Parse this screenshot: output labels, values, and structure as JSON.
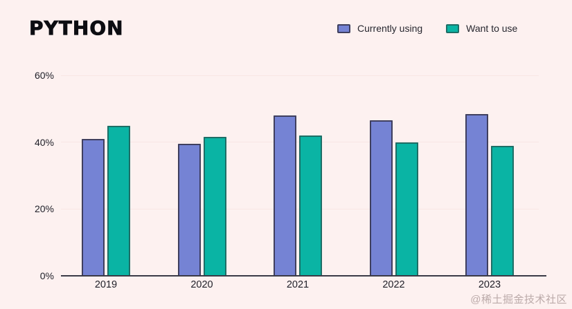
{
  "title": "PYTHON",
  "legend": [
    {
      "label": "Currently using",
      "color": "#7583d4",
      "border_color": "#3f3f5e"
    },
    {
      "label": "Want to use",
      "color": "#0ab4a4",
      "border_color": "#1d6e66"
    }
  ],
  "watermark": "@稀土掘金技术社区",
  "colors": {
    "background": "#fdf1f0",
    "axis_line": "#3a3a46",
    "gridline": "#f8e6e4",
    "text": "#1f1f28",
    "title_text": "#0d0d12",
    "series_currently_using": "#7583d4",
    "series_want_to_use": "#0ab4a4"
  },
  "chart_data": {
    "type": "bar",
    "title": "PYTHON",
    "categories": [
      "2019",
      "2020",
      "2021",
      "2022",
      "2023"
    ],
    "series": [
      {
        "name": "Currently using",
        "color": "#7583d4",
        "border_color": "#3f3f5e",
        "values": [
          41,
          39.5,
          48,
          46.5,
          48.5
        ]
      },
      {
        "name": "Want to use",
        "color": "#0ab4a4",
        "border_color": "#1d6e66",
        "values": [
          45,
          41.5,
          42,
          40,
          39
        ]
      }
    ],
    "xlabel": "",
    "ylabel": "",
    "ylim": [
      0,
      60
    ],
    "y_ticks": [
      0,
      20,
      40,
      60
    ],
    "y_tick_suffix": "%",
    "grid": true,
    "legend_position": "top-right"
  }
}
